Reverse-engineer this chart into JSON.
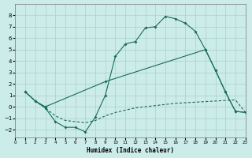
{
  "xlabel": "Humidex (Indice chaleur)",
  "background_color": "#ccecea",
  "line_color": "#1a6b5a",
  "grid_color": "#aacfcb",
  "xlim": [
    0,
    23
  ],
  "ylim": [
    -2.7,
    9.0
  ],
  "yticks": [
    -2,
    -1,
    0,
    1,
    2,
    3,
    4,
    5,
    6,
    7,
    8
  ],
  "xticks": [
    0,
    1,
    2,
    3,
    4,
    5,
    6,
    7,
    8,
    9,
    10,
    11,
    12,
    13,
    14,
    15,
    16,
    17,
    18,
    19,
    20,
    21,
    22,
    23
  ],
  "curve1_x": [
    1,
    2,
    3,
    4,
    5,
    6,
    7,
    8,
    9,
    10,
    11,
    12,
    13,
    14,
    15,
    16,
    17,
    18,
    19,
    20,
    21,
    22,
    23
  ],
  "curve1_y": [
    1.3,
    0.5,
    -0.1,
    -1.3,
    -1.8,
    -1.8,
    -2.2,
    -0.9,
    1.0,
    4.4,
    5.5,
    5.7,
    6.9,
    7.0,
    7.9,
    7.7,
    7.3,
    6.6,
    5.0,
    3.2,
    1.3,
    -0.4,
    -0.5
  ],
  "curve2_x": [
    1,
    2,
    3,
    9,
    19,
    20,
    21,
    22,
    23
  ],
  "curve2_y": [
    1.3,
    0.5,
    0.0,
    2.2,
    5.0,
    3.2,
    1.3,
    -0.4,
    -0.5
  ],
  "curve3_x": [
    1,
    2,
    3,
    4,
    5,
    6,
    7,
    8,
    9,
    10,
    11,
    12,
    13,
    14,
    15,
    16,
    17,
    18,
    19,
    20,
    21,
    22,
    23
  ],
  "curve3_y": [
    1.3,
    0.5,
    -0.1,
    -0.8,
    -1.2,
    -1.3,
    -1.4,
    -1.2,
    -0.8,
    -0.5,
    -0.3,
    -0.1,
    0.0,
    0.1,
    0.2,
    0.3,
    0.35,
    0.4,
    0.45,
    0.5,
    0.55,
    0.6,
    -0.5
  ]
}
